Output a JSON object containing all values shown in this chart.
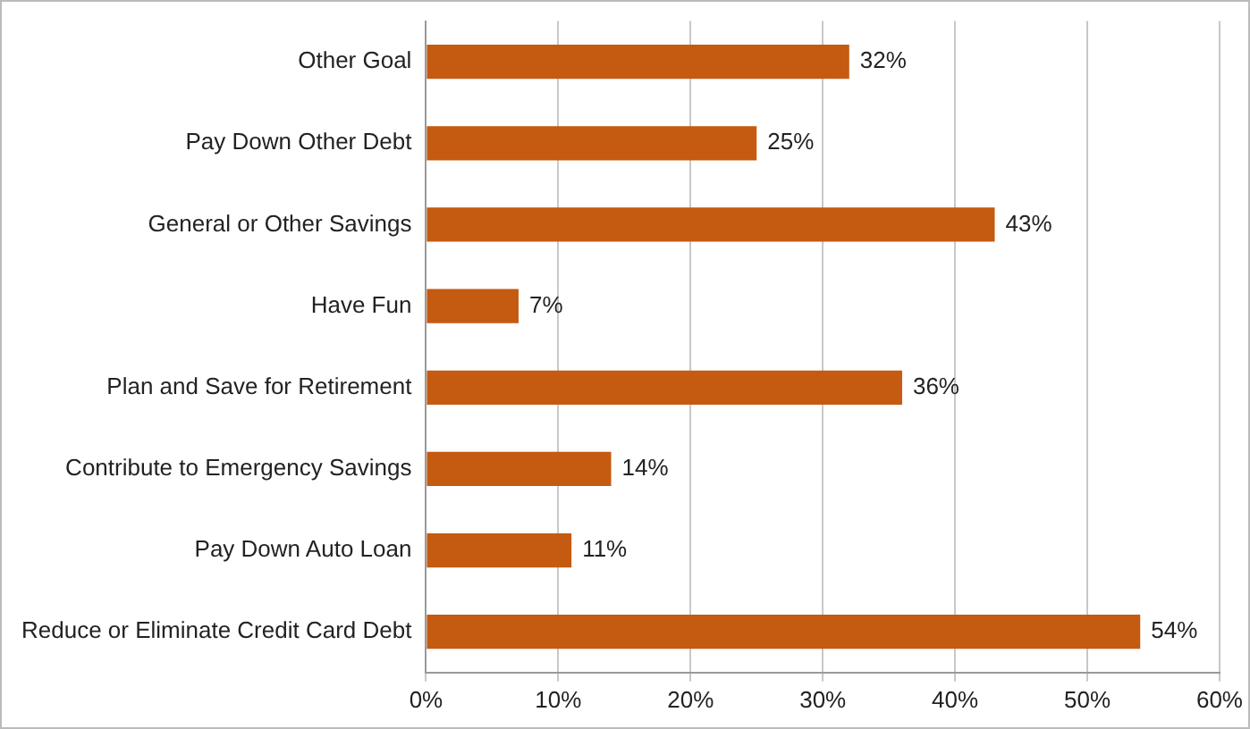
{
  "chart_data": {
    "type": "bar",
    "orientation": "horizontal",
    "categories": [
      "Other Goal",
      "Pay Down Other Debt",
      "General or Other Savings",
      "Have Fun",
      "Plan and Save for Retirement",
      "Contribute to Emergency Savings",
      "Pay Down Auto Loan",
      "Reduce or Eliminate Credit Card Debt"
    ],
    "values": [
      32,
      25,
      43,
      7,
      36,
      14,
      11,
      54
    ],
    "value_labels": [
      "32%",
      "25%",
      "43%",
      "7%",
      "36%",
      "14%",
      "11%",
      "54%"
    ],
    "color": "#c55a11",
    "xlim": [
      0,
      60
    ],
    "xticks": [
      {
        "value": 0,
        "label": "0%"
      },
      {
        "value": 10,
        "label": "10%"
      },
      {
        "value": 20,
        "label": "20%"
      },
      {
        "value": 30,
        "label": "30%"
      },
      {
        "value": 40,
        "label": "40%"
      },
      {
        "value": 50,
        "label": "50%"
      },
      {
        "value": 60,
        "label": "60%"
      }
    ],
    "grid": "x",
    "legend": false
  }
}
